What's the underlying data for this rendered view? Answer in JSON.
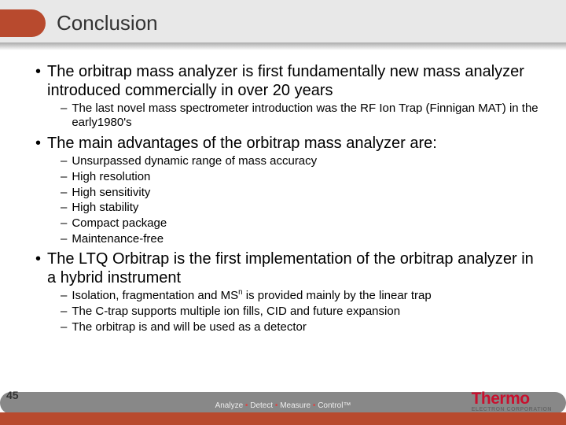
{
  "title": "Conclusion",
  "bullets": {
    "b1_1": "The orbitrap mass analyzer is first fundamentally new mass analyzer introduced commercially in over 20 years",
    "b2_1": "The last novel mass spectrometer introduction was the RF Ion Trap (Finnigan MAT) in the early1980's",
    "b1_2": "The main advantages of the orbitrap mass analyzer are:",
    "b2_2": "Unsurpassed dynamic range of mass accuracy",
    "b2_3": "High resolution",
    "b2_4": "High sensitivity",
    "b2_5": "High stability",
    "b2_6": "Compact package",
    "b2_7": "Maintenance-free",
    "b1_3": "The LTQ Orbitrap is the first implementation of the orbitrap analyzer in a hybrid instrument",
    "b2_8a": "Isolation, fragmentation and MS",
    "b2_8b": " is provided mainly by the linear trap",
    "b2_8sup": "n",
    "b2_9": "The C-trap supports multiple ion fills, CID and future expansion",
    "b2_10": "The orbitrap is and will be used as a detector"
  },
  "page": "45",
  "tagline": {
    "t1": "Analyze ",
    "t2": "Detect ",
    "t3": "Measure ",
    "t4": "Control",
    "tm": "™"
  },
  "logo": {
    "name": "Thermo",
    "sub": "ELECTRON CORPORATION"
  },
  "colors": {
    "accent": "#b84a2e",
    "grey": "#888",
    "topband": "#e8e8e8",
    "logo_red": "#c8102e"
  }
}
